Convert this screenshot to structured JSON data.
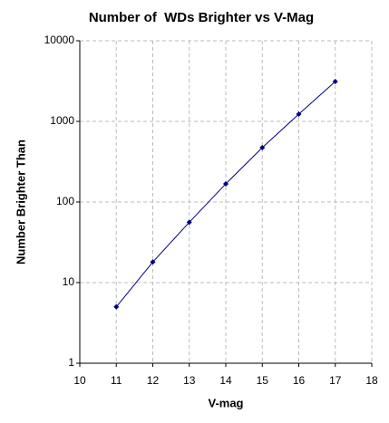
{
  "chart_data": {
    "type": "line",
    "title": "Number of  WDs Brighter vs V-Mag",
    "x_label": "V-mag",
    "y_label": "Number Brighter Than",
    "x": [
      11,
      12,
      13,
      14,
      15,
      16,
      17
    ],
    "values": [
      5,
      18,
      56,
      168,
      472,
      1230,
      3120
    ],
    "color": "#000080",
    "marker": "diamond",
    "xlim": [
      10,
      18
    ],
    "xticks": [
      10,
      11,
      12,
      13,
      14,
      15,
      16,
      17,
      18
    ],
    "ylim": [
      1,
      10000
    ],
    "yticks": [
      1,
      10,
      100,
      1000,
      10000
    ],
    "log_y": true,
    "grid": true
  }
}
